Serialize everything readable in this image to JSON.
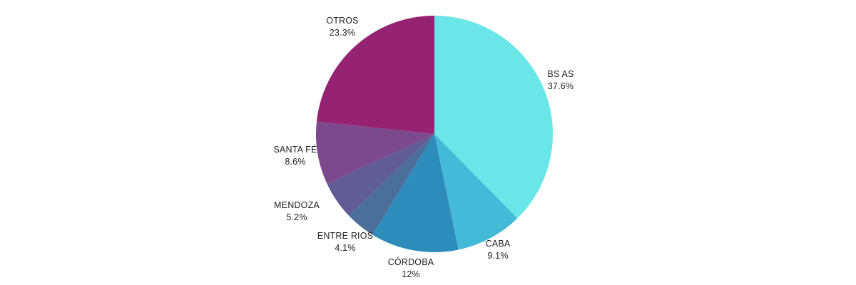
{
  "chart_data": {
    "type": "pie",
    "start_angle_deg": 0,
    "direction": "clockwise",
    "legend": "none",
    "slices": [
      {
        "label": "BS AS",
        "value": 37.6,
        "value_label": "37.6%",
        "color": "#6ae6e8"
      },
      {
        "label": "CABA",
        "value": 9.1,
        "value_label": "9.1%",
        "color": "#45bad8"
      },
      {
        "label": "CÓRDOBA",
        "value": 12,
        "value_label": "12%",
        "color": "#2e8cbb"
      },
      {
        "label": "ENTRE RIOS",
        "value": 4.1,
        "value_label": "4.1%",
        "color": "#4b6e9a"
      },
      {
        "label": "MENDOZA",
        "value": 5.2,
        "value_label": "5.2%",
        "color": "#615b96"
      },
      {
        "label": "SANTA FÉ",
        "value": 8.6,
        "value_label": "8.6%",
        "color": "#7d498d"
      },
      {
        "label": "OTROS",
        "value": 23.3,
        "value_label": "23.3%",
        "color": "#952371"
      }
    ]
  }
}
